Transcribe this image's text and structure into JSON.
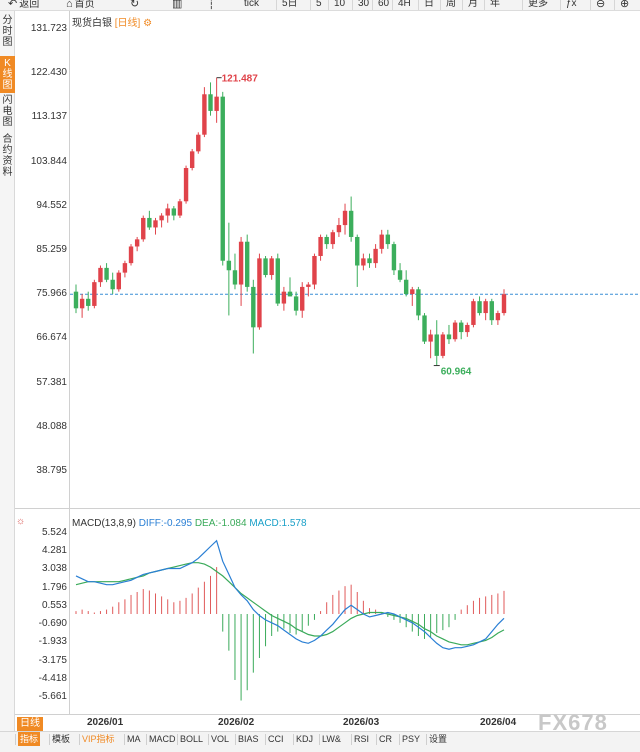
{
  "toolbar": {
    "items": [
      {
        "key": "back",
        "icon": "↶",
        "label": "返回"
      },
      {
        "key": "home",
        "icon": "⌂",
        "label": "首页"
      },
      {
        "key": "refresh",
        "icon": "↻",
        "label": ""
      },
      {
        "key": "bars",
        "icon": "▥",
        "label": ""
      },
      {
        "key": "candles",
        "icon": "┆",
        "label": ""
      },
      {
        "key": "tick",
        "icon": "",
        "label": "tick"
      },
      {
        "key": "5d",
        "icon": "",
        "label": "5日"
      },
      {
        "key": "p5",
        "icon": "",
        "label": "5"
      },
      {
        "key": "p10",
        "icon": "",
        "label": "10"
      },
      {
        "key": "p30",
        "icon": "",
        "label": "30"
      },
      {
        "key": "p60",
        "icon": "",
        "label": "60"
      },
      {
        "key": "4h",
        "icon": "",
        "label": "4H"
      },
      {
        "key": "day",
        "icon": "",
        "label": "日"
      },
      {
        "key": "week",
        "icon": "",
        "label": "周"
      },
      {
        "key": "month",
        "icon": "",
        "label": "月"
      },
      {
        "key": "year",
        "icon": "",
        "label": "年"
      },
      {
        "key": "more",
        "icon": "",
        "label": "更多"
      },
      {
        "key": "fx",
        "icon": "",
        "label": "ƒx"
      },
      {
        "key": "zoom-out",
        "icon": "⊖",
        "label": ""
      },
      {
        "key": "zoom-in",
        "icon": "⊕",
        "label": ""
      }
    ]
  },
  "sidebar": {
    "tabs": [
      {
        "label": "分时图",
        "active": false
      },
      {
        "label": "K线图",
        "active": true
      },
      {
        "label": "闪电图",
        "active": false
      },
      {
        "label": "合约资料",
        "active": false
      }
    ]
  },
  "price_panel": {
    "symbol": "现货白银",
    "period": "[日线]",
    "y_ticks": [
      "131.723",
      "122.430",
      "113.137",
      "103.844",
      "94.552",
      "85.259",
      "75.966",
      "66.674",
      "57.381",
      "48.088",
      "38.795"
    ],
    "high_label": "121.487",
    "low_label": "60.964",
    "last_price": 75.966
  },
  "macd_panel": {
    "name": "MACD(13,8,9)",
    "diff_label": "DIFF:-0.295",
    "dea_label": "DEA:-1.084",
    "macd_label": "MACD:1.578",
    "y_ticks": [
      "5.524",
      "4.281",
      "3.038",
      "1.796",
      "0.553",
      "-0.690",
      "-1.933",
      "-3.175",
      "-4.418",
      "-5.661"
    ],
    "colors": {
      "diff": "#2a7fd4",
      "dea": "#3aaa5a",
      "macd_label": "#1aa0c8",
      "up": "#e05a5a",
      "down": "#3aaa5a"
    }
  },
  "x_axis": {
    "labels": [
      "2026/01",
      "2026/02",
      "2026/03",
      "2026/04"
    ]
  },
  "bottom_bar": {
    "period_tag": "日线",
    "items": [
      {
        "label": "指标",
        "active": true
      },
      {
        "label": "模板"
      },
      {
        "label": "VIP指标",
        "vip": true
      },
      {
        "label": "MA"
      },
      {
        "label": "MACD"
      },
      {
        "label": "BOLL"
      },
      {
        "label": "VOL"
      },
      {
        "label": "BIAS"
      },
      {
        "label": "CCI"
      },
      {
        "label": "KDJ"
      },
      {
        "label": "LW&"
      },
      {
        "label": "RSI"
      },
      {
        "label": "CR"
      },
      {
        "label": "PSY"
      },
      {
        "label": "设置"
      }
    ]
  },
  "watermark": "FX678",
  "colors": {
    "up": "#e0434a",
    "down": "#3cae5c",
    "accent": "#f08a24",
    "last_price_line": "#3a8fd6"
  },
  "chart_data": [
    {
      "type": "candlestick",
      "title": "现货白银 [日线]",
      "ylim": [
        38.795,
        131.723
      ],
      "y_ticks": [
        131.723,
        122.43,
        113.137,
        103.844,
        94.552,
        85.259,
        75.966,
        66.674,
        57.381,
        48.088,
        38.795
      ],
      "x_ticks": [
        "2026/01",
        "2026/02",
        "2026/03",
        "2026/04"
      ],
      "annotations": [
        {
          "label": "121.487",
          "type": "high"
        },
        {
          "label": "60.964",
          "type": "low"
        }
      ],
      "ohlc": [
        [
          76.5,
          78.0,
          72.0,
          73.0
        ],
        [
          73.0,
          76.0,
          71.0,
          75.0
        ],
        [
          75.0,
          76.5,
          72.5,
          73.5
        ],
        [
          73.5,
          79.0,
          73.0,
          78.5
        ],
        [
          78.5,
          82.0,
          77.5,
          81.5
        ],
        [
          81.5,
          82.5,
          78.5,
          79.0
        ],
        [
          79.0,
          80.5,
          76.0,
          77.0
        ],
        [
          77.0,
          81.0,
          76.5,
          80.5
        ],
        [
          80.5,
          83.0,
          79.5,
          82.5
        ],
        [
          82.5,
          86.5,
          82.0,
          86.0
        ],
        [
          86.0,
          88.0,
          85.0,
          87.5
        ],
        [
          87.5,
          92.5,
          87.0,
          92.0
        ],
        [
          92.0,
          93.5,
          89.5,
          90.0
        ],
        [
          90.0,
          92.0,
          88.5,
          91.5
        ],
        [
          91.5,
          93.0,
          90.0,
          92.5
        ],
        [
          92.5,
          95.0,
          91.0,
          94.0
        ],
        [
          94.0,
          94.5,
          91.5,
          92.5
        ],
        [
          92.5,
          96.0,
          92.0,
          95.5
        ],
        [
          95.5,
          103.0,
          95.0,
          102.5
        ],
        [
          102.5,
          106.5,
          102.0,
          106.0
        ],
        [
          106.0,
          110.0,
          105.5,
          109.5
        ],
        [
          109.5,
          119.5,
          109.0,
          118.0
        ],
        [
          118.0,
          120.5,
          113.5,
          114.5
        ],
        [
          114.5,
          121.487,
          112.0,
          117.5
        ],
        [
          117.5,
          118.5,
          82.0,
          83.0
        ],
        [
          83.0,
          91.0,
          71.5,
          81.0
        ],
        [
          81.0,
          84.5,
          77.0,
          78.0
        ],
        [
          78.0,
          88.0,
          73.5,
          87.0
        ],
        [
          87.0,
          88.5,
          76.5,
          77.5
        ],
        [
          77.5,
          79.0,
          63.5,
          69.0
        ],
        [
          69.0,
          84.5,
          68.5,
          83.5
        ],
        [
          83.5,
          84.0,
          79.5,
          80.0
        ],
        [
          80.0,
          84.0,
          79.0,
          83.5
        ],
        [
          83.5,
          84.5,
          73.5,
          74.0
        ],
        [
          74.0,
          77.5,
          72.5,
          76.5
        ],
        [
          76.5,
          79.5,
          75.5,
          75.5
        ],
        [
          75.5,
          76.5,
          71.5,
          72.5
        ],
        [
          72.5,
          78.5,
          71.0,
          77.5
        ],
        [
          77.5,
          78.5,
          75.5,
          78.0
        ],
        [
          78.0,
          84.5,
          77.0,
          84.0
        ],
        [
          84.0,
          88.5,
          83.0,
          88.0
        ],
        [
          88.0,
          88.5,
          85.5,
          86.5
        ],
        [
          86.5,
          89.5,
          85.5,
          89.0
        ],
        [
          89.0,
          92.0,
          88.0,
          90.5
        ],
        [
          90.5,
          95.0,
          88.5,
          93.5
        ],
        [
          93.5,
          96.5,
          87.0,
          88.0
        ],
        [
          88.0,
          88.5,
          77.5,
          82.0
        ],
        [
          82.0,
          84.5,
          81.0,
          83.5
        ],
        [
          83.5,
          84.5,
          81.5,
          82.5
        ],
        [
          82.5,
          86.5,
          81.5,
          85.5
        ],
        [
          85.5,
          89.5,
          84.5,
          88.5
        ],
        [
          88.5,
          89.5,
          85.5,
          86.5
        ],
        [
          86.5,
          87.0,
          80.0,
          81.0
        ],
        [
          81.0,
          82.5,
          78.5,
          79.0
        ],
        [
          79.0,
          81.0,
          75.5,
          76.0
        ],
        [
          76.0,
          77.5,
          73.5,
          77.0
        ],
        [
          77.0,
          77.5,
          70.5,
          71.5
        ],
        [
          71.5,
          72.0,
          65.5,
          66.0
        ],
        [
          66.0,
          68.5,
          62.5,
          67.5
        ],
        [
          67.5,
          70.5,
          60.964,
          63.0
        ],
        [
          63.0,
          68.0,
          62.5,
          67.5
        ],
        [
          67.5,
          69.5,
          65.5,
          66.5
        ],
        [
          66.5,
          70.5,
          66.0,
          70.0
        ],
        [
          70.0,
          70.5,
          66.5,
          68.0
        ],
        [
          68.0,
          70.0,
          67.0,
          69.5
        ],
        [
          69.5,
          75.0,
          69.0,
          74.5
        ],
        [
          74.5,
          75.5,
          71.5,
          72.0
        ],
        [
          72.0,
          75.0,
          70.5,
          74.5
        ],
        [
          74.5,
          75.0,
          69.5,
          70.5
        ],
        [
          70.5,
          72.5,
          69.5,
          72.0
        ],
        [
          72.0,
          77.0,
          71.5,
          75.966
        ]
      ]
    },
    {
      "type": "macd",
      "title": "MACD(13,8,9)",
      "ylim": [
        -6.6,
        5.8
      ],
      "y_ticks": [
        5.524,
        4.281,
        3.038,
        1.796,
        0.553,
        -0.69,
        -1.933,
        -3.175,
        -4.418,
        -5.661
      ],
      "series": [
        {
          "name": "DIFF",
          "values": [
            2.6,
            2.4,
            2.2,
            2.2,
            2.1,
            2.0,
            2.0,
            2.1,
            2.2,
            2.3,
            2.5,
            2.7,
            2.8,
            2.9,
            3.0,
            3.1,
            3.1,
            3.1,
            3.3,
            3.5,
            3.8,
            4.2,
            4.6,
            5.0,
            3.6,
            2.7,
            1.8,
            1.3,
            0.9,
            0.3,
            -0.1,
            -0.4,
            -0.6,
            -0.8,
            -1.1,
            -1.4,
            -1.7,
            -1.9,
            -2.0,
            -1.8,
            -1.5,
            -1.1,
            -0.7,
            -0.2,
            0.3,
            0.6,
            0.3,
            0.0,
            -0.2,
            -0.1,
            0.0,
            0.1,
            0.0,
            -0.2,
            -0.4,
            -0.6,
            -0.9,
            -1.2,
            -1.6,
            -2.0,
            -2.3,
            -2.4,
            -2.3,
            -2.3,
            -2.2,
            -2.1,
            -1.9,
            -1.7,
            -1.2,
            -0.7,
            -0.295
          ]
        },
        {
          "name": "DEA",
          "values": [
            2.0,
            2.1,
            2.2,
            2.2,
            2.2,
            2.2,
            2.2,
            2.2,
            2.3,
            2.4,
            2.5,
            2.6,
            2.8,
            2.9,
            3.0,
            3.1,
            3.2,
            3.3,
            3.4,
            3.5,
            3.5,
            3.4,
            3.2,
            2.9,
            2.6,
            2.2,
            1.8,
            1.4,
            1.1,
            0.8,
            0.5,
            0.2,
            -0.1,
            -0.3,
            -0.5,
            -0.7,
            -1.0,
            -1.2,
            -1.4,
            -1.5,
            -1.5,
            -1.4,
            -1.2,
            -0.9,
            -0.6,
            -0.3,
            -0.1,
            0.0,
            0.1,
            0.1,
            0.1,
            0.0,
            -0.1,
            -0.2,
            -0.3,
            -0.5,
            -0.7,
            -1.0,
            -1.2,
            -1.5,
            -1.7,
            -1.9,
            -2.0,
            -2.1,
            -2.1,
            -2.0,
            -1.9,
            -1.8,
            -1.6,
            -1.3,
            -1.084
          ]
        },
        {
          "name": "MACD",
          "values": [
            0.2,
            0.3,
            0.2,
            0.1,
            0.2,
            0.3,
            0.5,
            0.8,
            1.0,
            1.3,
            1.5,
            1.7,
            1.6,
            1.4,
            1.2,
            1.0,
            0.8,
            0.9,
            1.1,
            1.4,
            1.8,
            2.2,
            2.6,
            3.2,
            -1.2,
            -2.5,
            -4.5,
            -5.9,
            -5.2,
            -4.0,
            -3.0,
            -2.2,
            -1.5,
            -1.2,
            -1.0,
            -1.3,
            -1.4,
            -1.2,
            -0.8,
            -0.4,
            0.2,
            0.8,
            1.3,
            1.6,
            1.9,
            2.0,
            1.5,
            0.9,
            0.4,
            0.3,
            0.1,
            -0.2,
            -0.4,
            -0.6,
            -0.9,
            -1.2,
            -1.5,
            -1.7,
            -1.6,
            -1.3,
            -1.1,
            -0.9,
            -0.4,
            0.3,
            0.6,
            0.9,
            1.1,
            1.2,
            1.3,
            1.4,
            1.578
          ]
        }
      ]
    }
  ]
}
